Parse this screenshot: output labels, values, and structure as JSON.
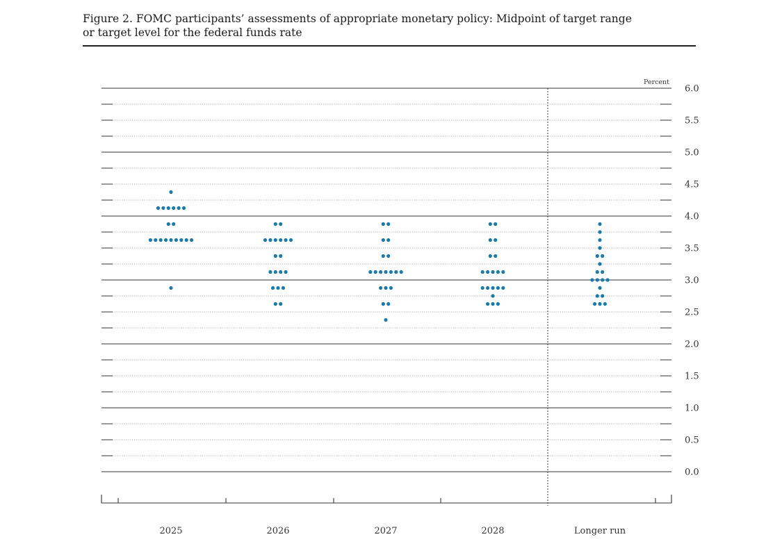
{
  "figure": {
    "title_line1": "Figure 2. FOMC participants’ assessments of appropriate monetary policy: Midpoint of target range",
    "title_line2": "or target level for the federal funds rate"
  },
  "chart_data": {
    "type": "scatter",
    "title": "Figure 2. FOMC participants’ assessments of appropriate monetary policy: Midpoint of target range or target level for the federal funds rate",
    "xlabel": "",
    "ylabel": "Percent",
    "ylim": [
      0.0,
      6.0
    ],
    "yticks": [
      0.0,
      0.5,
      1.0,
      1.5,
      2.0,
      2.5,
      3.0,
      3.5,
      4.0,
      4.5,
      5.0,
      5.5,
      6.0
    ],
    "ytick_labels": [
      "0.0",
      "0.5",
      "1.0",
      "1.5",
      "2.0",
      "2.5",
      "3.0",
      "3.5",
      "4.0",
      "4.5",
      "5.0",
      "5.5",
      "6.0"
    ],
    "categories": [
      "2025",
      "2026",
      "2027",
      "2028",
      "Longer run"
    ],
    "dot_color": "#1a7aa8",
    "grid": true,
    "dot_plot": [
      {
        "category": "2025",
        "dots": [
          {
            "rate": 4.375,
            "count": 1
          },
          {
            "rate": 4.125,
            "count": 6
          },
          {
            "rate": 3.875,
            "count": 2
          },
          {
            "rate": 3.625,
            "count": 9
          },
          {
            "rate": 2.875,
            "count": 1
          }
        ]
      },
      {
        "category": "2026",
        "dots": [
          {
            "rate": 3.875,
            "count": 2
          },
          {
            "rate": 3.625,
            "count": 6
          },
          {
            "rate": 3.375,
            "count": 2
          },
          {
            "rate": 3.125,
            "count": 4
          },
          {
            "rate": 2.875,
            "count": 3
          },
          {
            "rate": 2.625,
            "count": 2
          }
        ]
      },
      {
        "category": "2027",
        "dots": [
          {
            "rate": 3.875,
            "count": 2
          },
          {
            "rate": 3.625,
            "count": 2
          },
          {
            "rate": 3.375,
            "count": 2
          },
          {
            "rate": 3.125,
            "count": 7
          },
          {
            "rate": 2.875,
            "count": 3
          },
          {
            "rate": 2.625,
            "count": 2
          },
          {
            "rate": 2.375,
            "count": 1
          }
        ]
      },
      {
        "category": "2028",
        "dots": [
          {
            "rate": 3.875,
            "count": 2
          },
          {
            "rate": 3.625,
            "count": 2
          },
          {
            "rate": 3.375,
            "count": 2
          },
          {
            "rate": 3.125,
            "count": 5
          },
          {
            "rate": 2.875,
            "count": 5
          },
          {
            "rate": 2.75,
            "count": 1
          },
          {
            "rate": 2.625,
            "count": 3
          }
        ]
      },
      {
        "category": "Longer run",
        "dots": [
          {
            "rate": 3.875,
            "count": 1
          },
          {
            "rate": 3.75,
            "count": 1
          },
          {
            "rate": 3.625,
            "count": 1
          },
          {
            "rate": 3.5,
            "count": 1
          },
          {
            "rate": 3.375,
            "count": 2
          },
          {
            "rate": 3.25,
            "count": 1
          },
          {
            "rate": 3.125,
            "count": 2
          },
          {
            "rate": 3.0,
            "count": 4
          },
          {
            "rate": 2.875,
            "count": 1
          },
          {
            "rate": 2.75,
            "count": 2
          },
          {
            "rate": 2.625,
            "count": 3
          }
        ]
      }
    ]
  }
}
